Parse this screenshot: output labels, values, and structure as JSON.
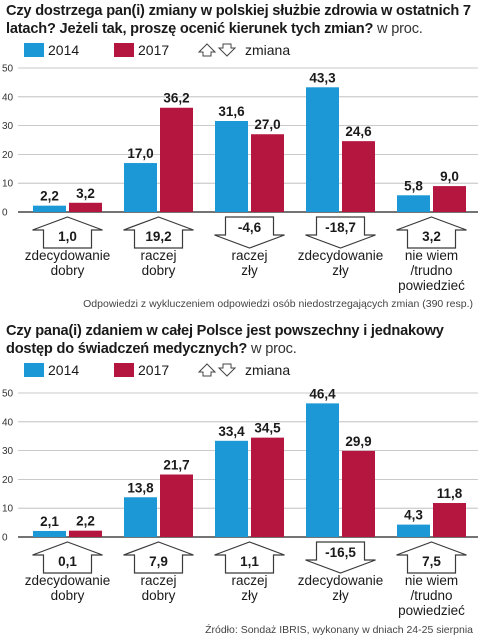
{
  "chart_data": [
    {
      "type": "bar",
      "title": "Czy dostrzega pan(i) zmiany w polskiej służbie zdrowia w ostatnich 7 latach? Jeżeli tak, proszę ocenić kierunek tych zmian?",
      "unit": "w proc.",
      "categories": [
        [
          "zdecydowanie",
          "dobry"
        ],
        [
          "raczej",
          "dobry"
        ],
        [
          "raczej",
          "zły"
        ],
        [
          "zdecydowanie",
          "zły"
        ],
        [
          "nie wiem",
          "/trudno",
          "powiedzieć"
        ]
      ],
      "series": [
        {
          "name": "2014",
          "values": [
            2.2,
            17.0,
            31.6,
            43.3,
            5.8
          ],
          "labels": [
            "2,2",
            "17,0",
            "31,6",
            "43,3",
            "5,8"
          ],
          "color": "#1c98d6"
        },
        {
          "name": "2017",
          "values": [
            3.2,
            36.2,
            27.0,
            24.6,
            9.0
          ],
          "labels": [
            "3,2",
            "36,2",
            "27,0",
            "24,6",
            "9,0"
          ],
          "color": "#b5163f"
        }
      ],
      "change_label": "zmiana",
      "changes": [
        1.0,
        19.2,
        -4.6,
        -18.7,
        3.2
      ],
      "change_labels": [
        "1,0",
        "19,2",
        "-4,6",
        "-18,7",
        "3,2"
      ],
      "ylim": [
        0,
        50
      ],
      "yticks": [
        0,
        10,
        20,
        30,
        40,
        50
      ],
      "grid": true,
      "note": "Odpowiedzi z wykluczeniem odpowiedzi osób niedostrzegających zmian (390 resp.)"
    },
    {
      "type": "bar",
      "title": "Czy pana(i) zdaniem w całej Polsce jest powszechny i jednakowy dostęp do świadczeń medycznych?",
      "unit": "w proc.",
      "categories": [
        [
          "zdecydowanie",
          "dobry"
        ],
        [
          "raczej",
          "dobry"
        ],
        [
          "raczej",
          "zły"
        ],
        [
          "zdecydowanie",
          "zły"
        ],
        [
          "nie wiem",
          "/trudno",
          "powiedzieć"
        ]
      ],
      "series": [
        {
          "name": "2014",
          "values": [
            2.1,
            13.8,
            33.4,
            46.4,
            4.3
          ],
          "labels": [
            "2,1",
            "13,8",
            "33,4",
            "46,4",
            "4,3"
          ],
          "color": "#1c98d6"
        },
        {
          "name": "2017",
          "values": [
            2.2,
            21.7,
            34.5,
            29.9,
            11.8
          ],
          "labels": [
            "2,2",
            "21,7",
            "34,5",
            "29,9",
            "11,8"
          ],
          "color": "#b5163f"
        }
      ],
      "change_label": "zmiana",
      "changes": [
        0.1,
        7.9,
        1.1,
        -16.5,
        7.5
      ],
      "change_labels": [
        "0,1",
        "7,9",
        "1,1",
        "-16,5",
        "7,5"
      ],
      "ylim": [
        0,
        50
      ],
      "yticks": [
        0,
        10,
        20,
        30,
        40,
        50
      ],
      "grid": true,
      "note": "Źródło: Sondaż IBRIS, wykonany w dniach 24-25 sierpnia"
    }
  ]
}
